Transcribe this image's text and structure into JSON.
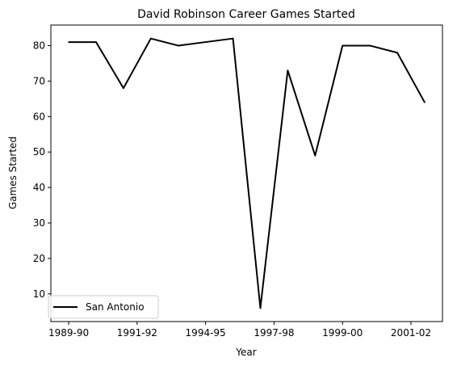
{
  "chart_data": {
    "type": "line",
    "title": "David Robinson  Career Games Started",
    "xlabel": "Year",
    "ylabel": "Games Started",
    "x_ticks": [
      "1989-90",
      "1991-92",
      "1994-95",
      "1997-98",
      "1999-00",
      "2001-02"
    ],
    "x_tick_positions": [
      0,
      2.5,
      5,
      7.5,
      10,
      12.5
    ],
    "y_ticks": [
      10,
      20,
      30,
      40,
      50,
      60,
      70,
      80
    ],
    "xlim": [
      -0.65,
      13.65
    ],
    "ylim": [
      2.2,
      85.8
    ],
    "grid": false,
    "legend_position": "lower left",
    "series": [
      {
        "name": "San Antonio",
        "color": "#000000",
        "x": [
          0,
          1,
          2,
          3,
          4,
          5,
          6,
          7,
          8,
          9,
          10,
          11,
          12,
          13
        ],
        "values": [
          81,
          81,
          68,
          82,
          80,
          81,
          82,
          6,
          73,
          49,
          80,
          80,
          78,
          64
        ]
      }
    ]
  }
}
